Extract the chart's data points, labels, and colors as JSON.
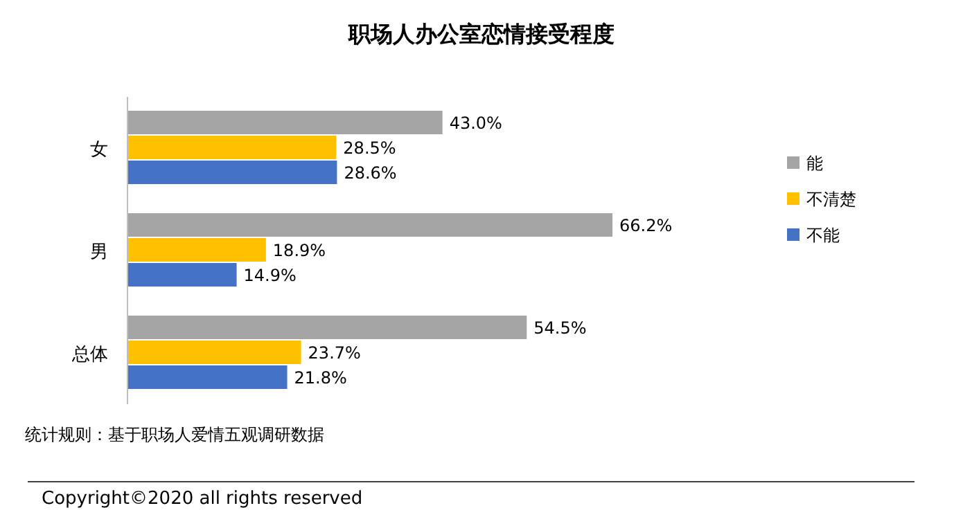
{
  "chart_data": {
    "type": "bar",
    "orientation": "horizontal",
    "title": "职场人办公室恋情接受程度",
    "categories": [
      "女",
      "男",
      "总体"
    ],
    "series": [
      {
        "name": "能",
        "color": "#a5a5a5",
        "values": [
          43.0,
          66.2,
          54.5
        ],
        "value_labels": [
          "43.0%",
          "66.2%",
          "54.5%"
        ]
      },
      {
        "name": "不清楚",
        "color": "#ffc000",
        "values": [
          28.5,
          18.9,
          23.7
        ],
        "value_labels": [
          "28.5%",
          "18.9%",
          "23.7%"
        ]
      },
      {
        "name": "不能",
        "color": "#4472c4",
        "values": [
          28.6,
          14.9,
          21.8
        ],
        "value_labels": [
          "28.6%",
          "14.9%",
          "21.8%"
        ]
      }
    ],
    "legend": "right",
    "annotations": [
      "统计规则：基于职场人爱情五观调研数据",
      "Copyright©2020 all rights reserved"
    ]
  }
}
